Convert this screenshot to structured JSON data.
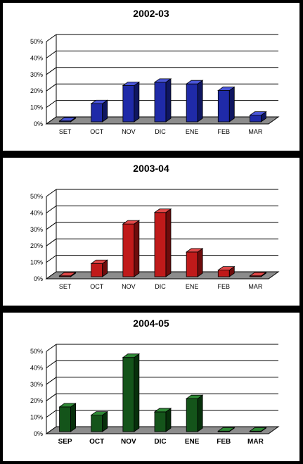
{
  "chart_data": [
    {
      "type": "bar",
      "title": "2002-03",
      "categories": [
        "SET",
        "OCT",
        "NOV",
        "DIC",
        "ENE",
        "FEB",
        "MAR"
      ],
      "values": [
        0.5,
        11,
        22,
        24,
        23,
        19,
        4
      ],
      "ylim": [
        0,
        50
      ],
      "yticks": [
        "0%",
        "10%",
        "20%",
        "30%",
        "40%",
        "50%"
      ],
      "xlabel": "",
      "ylabel": "",
      "colors": {
        "front": "#1f2aa8",
        "side": "#0f1660",
        "top": "#4a56d8"
      },
      "grid": true,
      "category_label_bold": false
    },
    {
      "type": "bar",
      "title": "2003-04",
      "categories": [
        "SET",
        "OCT",
        "NOV",
        "DIC",
        "ENE",
        "FEB",
        "MAR"
      ],
      "values": [
        0.5,
        8,
        32,
        39,
        15,
        4,
        0.5
      ],
      "ylim": [
        0,
        50
      ],
      "yticks": [
        "0%",
        "10%",
        "20%",
        "30%",
        "40%",
        "50%"
      ],
      "xlabel": "",
      "ylabel": "",
      "colors": {
        "front": "#c01a1a",
        "side": "#6e0c0c",
        "top": "#e04848"
      },
      "grid": true,
      "category_label_bold": false
    },
    {
      "type": "bar",
      "title": "2004-05",
      "categories": [
        "SEP",
        "OCT",
        "NOV",
        "DIC",
        "ENE",
        "FEB",
        "MAR"
      ],
      "values": [
        15,
        10,
        45,
        12,
        20,
        0.3,
        0.3
      ],
      "ylim": [
        0,
        50
      ],
      "yticks": [
        "0%",
        "10%",
        "20%",
        "30%",
        "40%",
        "50%"
      ],
      "xlabel": "",
      "ylabel": "",
      "colors": {
        "front": "#14541a",
        "side": "#07300b",
        "top": "#2f8a36"
      },
      "grid": true,
      "category_label_bold": true
    }
  ]
}
